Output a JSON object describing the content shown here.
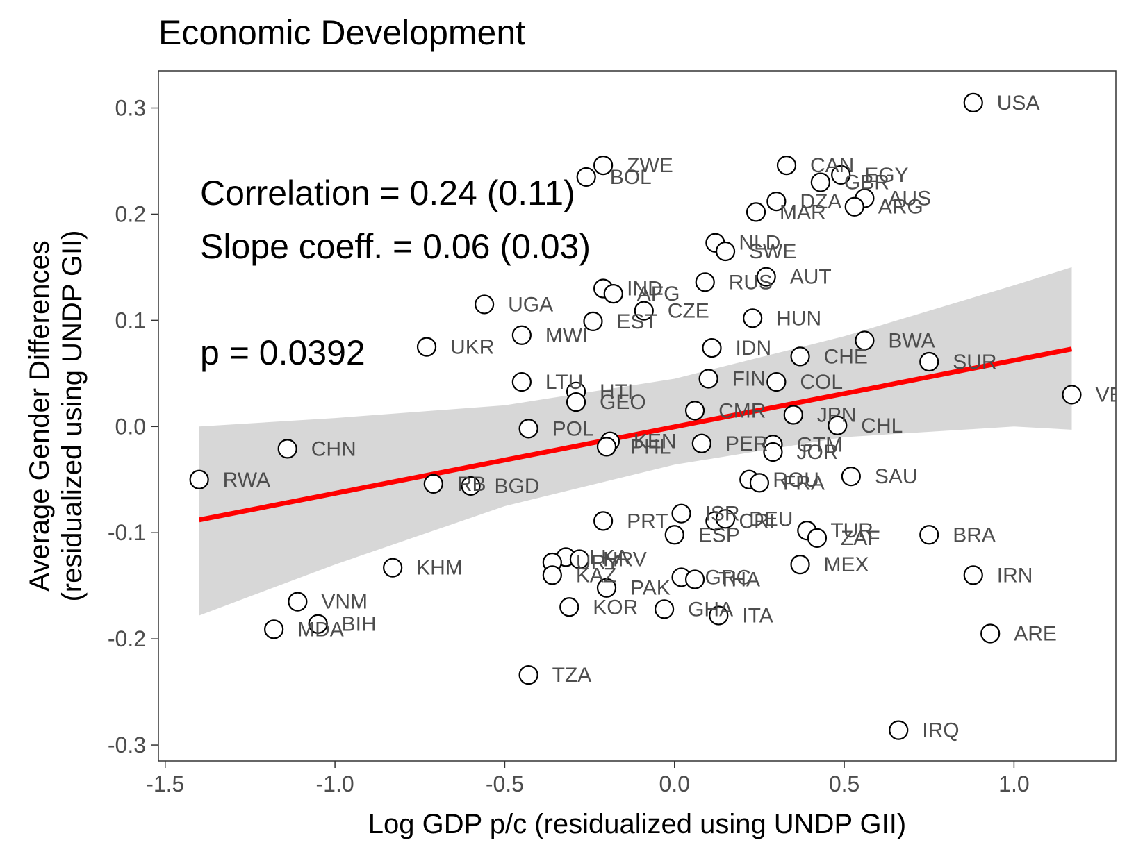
{
  "chart_data": {
    "type": "scatter",
    "title": "Economic Development",
    "xlabel": "Log GDP p/c (residualized using UNDP GII)",
    "ylabel_lines": [
      "Average Gender Differences",
      "(residualized using UNDP GII)"
    ],
    "xlim": [
      -1.52,
      1.3
    ],
    "ylim": [
      -0.315,
      0.335
    ],
    "x_ticks": [
      -1.5,
      -1.0,
      -0.5,
      0.0,
      0.5,
      1.0
    ],
    "x_tick_labels": [
      "-1.5",
      "-1.0",
      "-0.5",
      "0.0",
      "0.5",
      "1.0"
    ],
    "y_ticks": [
      0.3,
      0.2,
      0.1,
      0.0,
      -0.1,
      -0.2,
      -0.3
    ],
    "y_tick_labels": [
      "0.3",
      "0.2",
      "0.1",
      "0.0",
      "-0.1",
      "-0.2",
      "-0.3"
    ],
    "annotations": [
      "Correlation = 0.24 (0.11)",
      "Slope coeff. = 0.06 (0.03)",
      "p = 0.0392"
    ],
    "fit_line": {
      "color": "#ff0000",
      "x": [
        -1.4,
        1.17
      ],
      "y": [
        -0.088,
        0.073
      ]
    },
    "confidence_band": {
      "color": "#bdbdbd",
      "x": [
        -1.4,
        -1.0,
        -0.5,
        0.0,
        0.5,
        1.0,
        1.17
      ],
      "upper": [
        0.0,
        0.008,
        0.02,
        0.045,
        0.085,
        0.133,
        0.15
      ],
      "lower": [
        -0.178,
        -0.13,
        -0.075,
        -0.036,
        -0.01,
        0.0,
        -0.003
      ]
    },
    "points": [
      {
        "label": "USA",
        "x": 0.88,
        "y": 0.305
      },
      {
        "label": "ZWE",
        "x": -0.21,
        "y": 0.246
      },
      {
        "label": "BOL",
        "x": -0.26,
        "y": 0.235
      },
      {
        "label": "CAN",
        "x": 0.33,
        "y": 0.246
      },
      {
        "label": "EGY",
        "x": 0.49,
        "y": 0.237
      },
      {
        "label": "GBR",
        "x": 0.43,
        "y": 0.23
      },
      {
        "label": "AUS",
        "x": 0.56,
        "y": 0.215
      },
      {
        "label": "DZA",
        "x": 0.3,
        "y": 0.212
      },
      {
        "label": "ARG",
        "x": 0.53,
        "y": 0.207
      },
      {
        "label": "MAR",
        "x": 0.24,
        "y": 0.202
      },
      {
        "label": "NLD",
        "x": 0.12,
        "y": 0.173
      },
      {
        "label": "SWE",
        "x": 0.15,
        "y": 0.165
      },
      {
        "label": "AUT",
        "x": 0.27,
        "y": 0.141
      },
      {
        "label": "RUS",
        "x": 0.09,
        "y": 0.136
      },
      {
        "label": "IND",
        "x": -0.21,
        "y": 0.13
      },
      {
        "label": "AFG",
        "x": -0.18,
        "y": 0.125
      },
      {
        "label": "UGA",
        "x": -0.56,
        "y": 0.115
      },
      {
        "label": "CZE",
        "x": -0.09,
        "y": 0.109
      },
      {
        "label": "HUN",
        "x": 0.23,
        "y": 0.102
      },
      {
        "label": "EST",
        "x": -0.24,
        "y": 0.099
      },
      {
        "label": "MWI",
        "x": -0.45,
        "y": 0.086
      },
      {
        "label": "BWA",
        "x": 0.56,
        "y": 0.081
      },
      {
        "label": "UKR",
        "x": -0.73,
        "y": 0.075
      },
      {
        "label": "IDN",
        "x": 0.11,
        "y": 0.074
      },
      {
        "label": "CHE",
        "x": 0.37,
        "y": 0.066
      },
      {
        "label": "SUR",
        "x": 0.75,
        "y": 0.061
      },
      {
        "label": "FIN",
        "x": 0.1,
        "y": 0.045
      },
      {
        "label": "LTU",
        "x": -0.45,
        "y": 0.042
      },
      {
        "label": "COL",
        "x": 0.3,
        "y": 0.042
      },
      {
        "label": "HTI",
        "x": -0.29,
        "y": 0.033
      },
      {
        "label": "VEN",
        "x": 1.17,
        "y": 0.03
      },
      {
        "label": "GEO",
        "x": -0.29,
        "y": 0.023
      },
      {
        "label": "CMR",
        "x": 0.06,
        "y": 0.015
      },
      {
        "label": "JPN",
        "x": 0.35,
        "y": 0.011
      },
      {
        "label": "CHL",
        "x": 0.48,
        "y": 0.001
      },
      {
        "label": "POL",
        "x": -0.43,
        "y": -0.002
      },
      {
        "label": "KEN",
        "x": -0.19,
        "y": -0.014
      },
      {
        "label": "PHL",
        "x": -0.2,
        "y": -0.019
      },
      {
        "label": "PER",
        "x": 0.08,
        "y": -0.016
      },
      {
        "label": "GTM",
        "x": 0.29,
        "y": -0.017
      },
      {
        "label": "JOR",
        "x": 0.29,
        "y": -0.024
      },
      {
        "label": "CHN",
        "x": -1.14,
        "y": -0.021
      },
      {
        "label": "SAU",
        "x": 0.52,
        "y": -0.047
      },
      {
        "label": "RWA",
        "x": -1.4,
        "y": -0.05
      },
      {
        "label": "ROU",
        "x": 0.22,
        "y": -0.05
      },
      {
        "label": "FRA",
        "x": 0.25,
        "y": -0.053
      },
      {
        "label": "RB",
        "x": -0.71,
        "y": -0.054
      },
      {
        "label": "BGD",
        "x": -0.6,
        "y": -0.056
      },
      {
        "label": "ISR",
        "x": 0.02,
        "y": -0.082
      },
      {
        "label": "PRT",
        "x": -0.21,
        "y": -0.089
      },
      {
        "label": "CRI",
        "x": 0.12,
        "y": -0.089
      },
      {
        "label": "DEU",
        "x": 0.15,
        "y": -0.087
      },
      {
        "label": "TUR",
        "x": 0.39,
        "y": -0.098
      },
      {
        "label": "ZAF",
        "x": 0.42,
        "y": -0.105
      },
      {
        "label": "ESP",
        "x": 0.0,
        "y": -0.102
      },
      {
        "label": "BRA",
        "x": 0.75,
        "y": -0.102
      },
      {
        "label": "LKA",
        "x": -0.32,
        "y": -0.123
      },
      {
        "label": "HRV",
        "x": -0.28,
        "y": -0.125
      },
      {
        "label": "URY",
        "x": -0.36,
        "y": -0.128
      },
      {
        "label": "MEX",
        "x": 0.37,
        "y": -0.13
      },
      {
        "label": "KHM",
        "x": -0.83,
        "y": -0.133
      },
      {
        "label": "KAZ",
        "x": -0.36,
        "y": -0.14
      },
      {
        "label": "IRN",
        "x": 0.88,
        "y": -0.14
      },
      {
        "label": "GRC",
        "x": 0.02,
        "y": -0.142
      },
      {
        "label": "THA",
        "x": 0.06,
        "y": -0.144
      },
      {
        "label": "PAK",
        "x": -0.2,
        "y": -0.152
      },
      {
        "label": "VNM",
        "x": -1.11,
        "y": -0.165
      },
      {
        "label": "KOR",
        "x": -0.31,
        "y": -0.17
      },
      {
        "label": "GHA",
        "x": -0.03,
        "y": -0.172
      },
      {
        "label": "ITA",
        "x": 0.13,
        "y": -0.178
      },
      {
        "label": "BIH",
        "x": -1.05,
        "y": -0.186
      },
      {
        "label": "MDA",
        "x": -1.18,
        "y": -0.191
      },
      {
        "label": "ARE",
        "x": 0.93,
        "y": -0.195
      },
      {
        "label": "TZA",
        "x": -0.43,
        "y": -0.234
      },
      {
        "label": "IRQ",
        "x": 0.66,
        "y": -0.286
      }
    ]
  }
}
